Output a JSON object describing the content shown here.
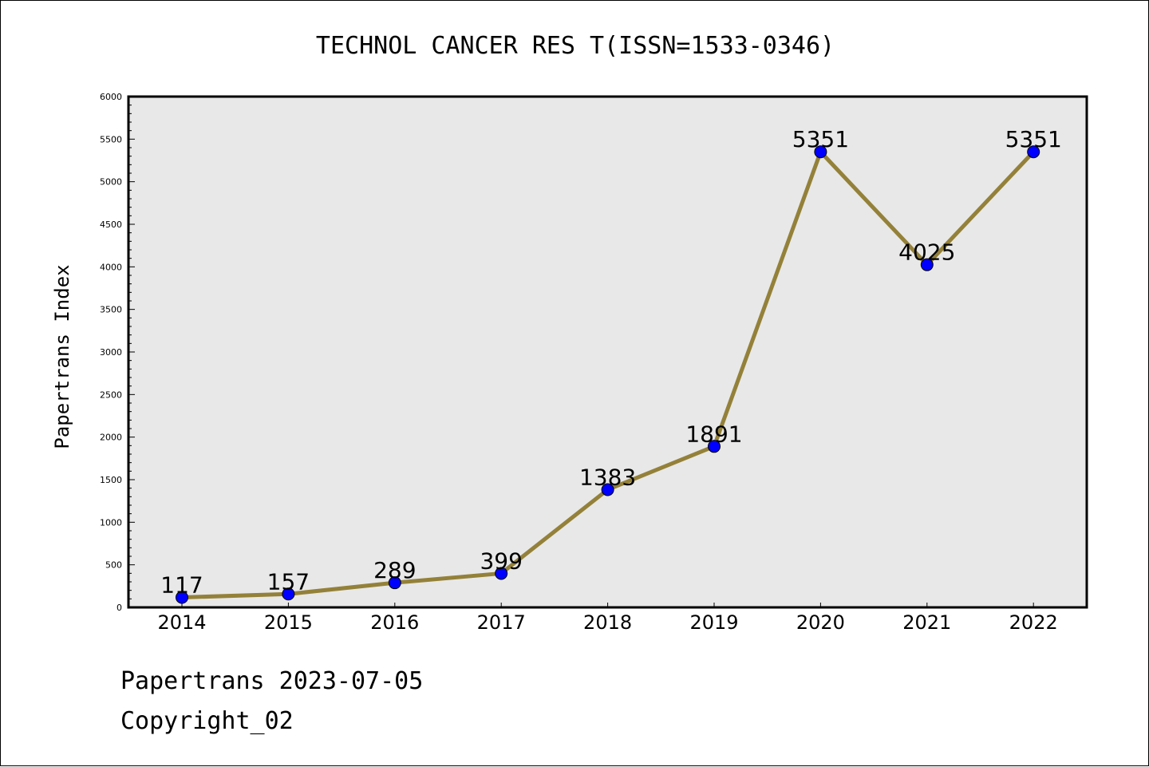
{
  "chart_data": {
    "type": "line",
    "title": "TECHNOL CANCER RES T(ISSN=1533-0346)",
    "xlabel": "",
    "ylabel": "Papertrans Index",
    "categories": [
      "2014",
      "2015",
      "2016",
      "2017",
      "2018",
      "2019",
      "2020",
      "2021",
      "2022"
    ],
    "values": [
      117,
      157,
      289,
      399,
      1383,
      1891,
      5351,
      4025,
      5351
    ],
    "data_labels": [
      "117",
      "157",
      "289",
      "399",
      "1383",
      "1891",
      "5351",
      "4025",
      "5351"
    ],
    "ylim": [
      0,
      6000
    ],
    "y_ticks": [
      0,
      500,
      1000,
      1500,
      2000,
      2500,
      3000,
      3500,
      4000,
      4500,
      5000,
      5500,
      6000
    ],
    "y_tick_labels": [
      "0",
      "500",
      "1000",
      "1500",
      "2000",
      "2500",
      "3000",
      "3500",
      "4000",
      "4500",
      "5000",
      "5500",
      "6000"
    ],
    "grid": false,
    "colors": {
      "line": "#948139",
      "marker": "#0000ff",
      "plot_background": "#e8e8e8"
    }
  },
  "footer": {
    "source": "Papertrans 2023-07-05",
    "copyright": "Copyright_02"
  }
}
